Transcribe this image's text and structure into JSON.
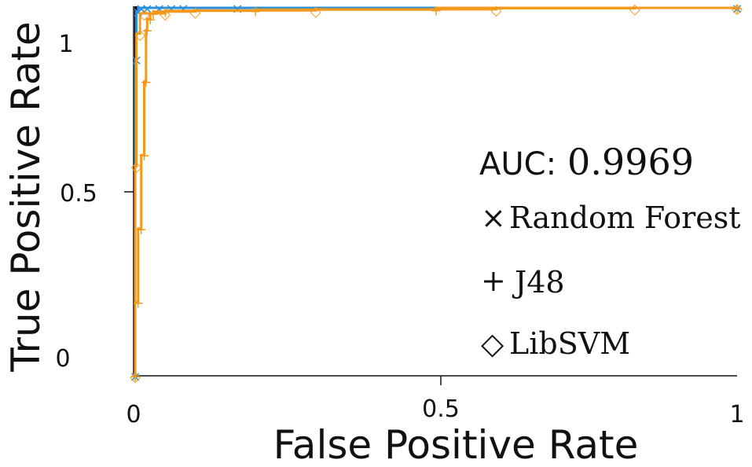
{
  "chart_data": {
    "type": "line",
    "xlabel": "False Positive Rate",
    "ylabel": "True Positive Rate",
    "xlim": [
      0,
      1
    ],
    "ylim": [
      0,
      1
    ],
    "x_ticks": [
      "0",
      "0.5",
      "1"
    ],
    "y_ticks": [
      "0",
      "0.5",
      "1"
    ],
    "grid": false,
    "annotation": {
      "label": "AUC:",
      "value": "0.9969"
    },
    "legend_position": "right",
    "series": [
      {
        "name": "Random Forest",
        "marker": "×",
        "color": "#2a8fdc",
        "points": [
          [
            0,
            0
          ],
          [
            0.002,
            0.86
          ],
          [
            0.005,
            0.99
          ],
          [
            0.01,
            1.0
          ],
          [
            0.02,
            1.0
          ],
          [
            0.04,
            1.0
          ],
          [
            0.06,
            1.0
          ],
          [
            0.08,
            1.0
          ],
          [
            0.17,
            1.0
          ],
          [
            1.0,
            1.0
          ]
        ]
      },
      {
        "name": "J48",
        "marker": "+",
        "color": "#f39a1e",
        "points": [
          [
            0,
            0
          ],
          [
            0.005,
            0.2
          ],
          [
            0.01,
            0.4
          ],
          [
            0.015,
            0.6
          ],
          [
            0.018,
            0.8
          ],
          [
            0.02,
            0.94
          ],
          [
            0.025,
            0.97
          ],
          [
            0.03,
            0.985
          ],
          [
            0.05,
            0.99
          ],
          [
            0.2,
            0.992
          ],
          [
            0.5,
            0.995
          ],
          [
            1.0,
            1.0
          ]
        ]
      },
      {
        "name": "LibSVM",
        "marker": "◇",
        "color": "#f39a1e",
        "points": [
          [
            0,
            0
          ],
          [
            0.002,
            0.57
          ],
          [
            0.008,
            0.93
          ],
          [
            0.015,
            0.985
          ],
          [
            0.05,
            0.985
          ],
          [
            0.1,
            0.99
          ],
          [
            0.3,
            0.993
          ],
          [
            0.6,
            0.996
          ],
          [
            0.83,
            0.999
          ],
          [
            1.0,
            1.0
          ]
        ]
      }
    ]
  }
}
